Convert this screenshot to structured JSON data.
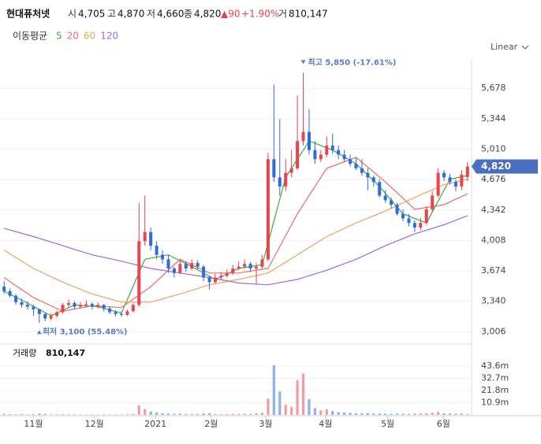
{
  "header": {
    "name": "현대퓨처넷",
    "open_label": "시",
    "open": "4,705",
    "high_label": "고",
    "high": "4,870",
    "low_label": "저",
    "low": "4,660",
    "close_label": "종",
    "close": "4,820",
    "change": "▲90",
    "change_pct": "+1.90%",
    "volume_label": "거",
    "volume": "810,147"
  },
  "scale_label": "Linear",
  "chart_data": {
    "type": "candlestick",
    "legend_title": "이동평균",
    "up_color": "#e8434e",
    "down_color": "#2f6bd9",
    "volume_up_color": "#f29ca0",
    "volume_down_color": "#8db0ec",
    "xlim": [
      -0.7,
      79.7
    ],
    "xticks": [
      {
        "value": 5,
        "label": "11월"
      },
      {
        "value": 15.4,
        "label": "12월"
      },
      {
        "value": 25.8,
        "label": "2021"
      },
      {
        "value": 35.3,
        "label": "2월"
      },
      {
        "value": 44.6,
        "label": "3월"
      },
      {
        "value": 54.8,
        "label": "4월"
      },
      {
        "value": 65.4,
        "label": "5월"
      },
      {
        "value": 74.9,
        "label": "6월"
      }
    ],
    "ylim": [
      2870,
      6000
    ],
    "yticks": [
      {
        "value": 5678,
        "label": "5,678"
      },
      {
        "value": 5344,
        "label": "5,344"
      },
      {
        "value": 5010,
        "label": "5,010"
      },
      {
        "value": 4676,
        "label": "4,676"
      },
      {
        "value": 4342,
        "label": "4,342"
      },
      {
        "value": 4008,
        "label": "4,008"
      },
      {
        "value": 3674,
        "label": "3,674"
      },
      {
        "value": 3340,
        "label": "3,340"
      },
      {
        "value": 3006,
        "label": "3,006"
      }
    ],
    "grid": true,
    "last_price": {
      "value": 4820,
      "label": "4,820",
      "color": "#4a6fc0"
    },
    "high_note": {
      "index": 51,
      "value": 5850,
      "label": "최고 5,850 (-17.61%)"
    },
    "low_note": {
      "index": 6,
      "value": 3100,
      "label": "최저 3,100 (55.48%)"
    },
    "candles": [
      [
        3500,
        3560,
        3420,
        3450
      ],
      [
        3450,
        3480,
        3380,
        3400
      ],
      [
        3400,
        3420,
        3300,
        3330
      ],
      [
        3330,
        3370,
        3270,
        3300
      ],
      [
        3300,
        3340,
        3250,
        3280
      ],
      [
        3280,
        3300,
        3180,
        3250
      ],
      [
        3250,
        3260,
        3100,
        3200
      ],
      [
        3200,
        3220,
        3120,
        3150
      ],
      [
        3150,
        3210,
        3130,
        3180
      ],
      [
        3180,
        3240,
        3160,
        3220
      ],
      [
        3220,
        3320,
        3200,
        3300
      ],
      [
        3300,
        3360,
        3270,
        3320
      ],
      [
        3320,
        3340,
        3250,
        3280
      ],
      [
        3280,
        3330,
        3260,
        3300
      ],
      [
        3300,
        3350,
        3280,
        3310
      ],
      [
        3310,
        3330,
        3250,
        3280
      ],
      [
        3280,
        3330,
        3260,
        3300
      ],
      [
        3300,
        3310,
        3230,
        3260
      ],
      [
        3260,
        3280,
        3200,
        3220
      ],
      [
        3220,
        3240,
        3170,
        3200
      ],
      [
        3200,
        3230,
        3170,
        3190
      ],
      [
        3190,
        3250,
        3180,
        3230
      ],
      [
        3230,
        3320,
        3220,
        3300
      ],
      [
        3300,
        4420,
        3280,
        4000
      ],
      [
        4000,
        4500,
        3950,
        4100
      ],
      [
        4100,
        4150,
        3900,
        3950
      ],
      [
        3950,
        4000,
        3800,
        3850
      ],
      [
        3850,
        3900,
        3750,
        3800
      ],
      [
        3800,
        3850,
        3650,
        3700
      ],
      [
        3700,
        3720,
        3600,
        3650
      ],
      [
        3650,
        3800,
        3640,
        3750
      ],
      [
        3750,
        3780,
        3660,
        3700
      ],
      [
        3700,
        3800,
        3680,
        3760
      ],
      [
        3760,
        3790,
        3690,
        3720
      ],
      [
        3720,
        3740,
        3560,
        3600
      ],
      [
        3600,
        3620,
        3470,
        3550
      ],
      [
        3550,
        3640,
        3530,
        3600
      ],
      [
        3600,
        3660,
        3580,
        3620
      ],
      [
        3620,
        3690,
        3600,
        3650
      ],
      [
        3650,
        3740,
        3630,
        3700
      ],
      [
        3700,
        3780,
        3680,
        3720
      ],
      [
        3720,
        3800,
        3700,
        3750
      ],
      [
        3750,
        3770,
        3660,
        3700
      ],
      [
        3700,
        3760,
        3520,
        3720
      ],
      [
        3720,
        3850,
        3700,
        3800
      ],
      [
        3800,
        4970,
        3780,
        4900
      ],
      [
        4900,
        5720,
        4650,
        4700
      ],
      [
        4700,
        5340,
        4500,
        4600
      ],
      [
        4600,
        4900,
        4550,
        4750
      ],
      [
        4750,
        5000,
        4700,
        4800
      ],
      [
        4800,
        5600,
        4780,
        5100
      ],
      [
        5100,
        5850,
        5050,
        5200
      ],
      [
        5200,
        5450,
        4950,
        5000
      ],
      [
        5000,
        5100,
        4850,
        4900
      ],
      [
        4900,
        5000,
        4870,
        4950
      ],
      [
        4950,
        5150,
        4920,
        5050
      ],
      [
        5050,
        5180,
        4960,
        5000
      ],
      [
        5000,
        5050,
        4900,
        4950
      ],
      [
        4950,
        5000,
        4870,
        4900
      ],
      [
        4900,
        4950,
        4820,
        4850
      ],
      [
        4850,
        4920,
        4780,
        4800
      ],
      [
        4800,
        4900,
        4720,
        4750
      ],
      [
        4750,
        4800,
        4560,
        4700
      ],
      [
        4700,
        4720,
        4600,
        4650
      ],
      [
        4650,
        4680,
        4480,
        4500
      ],
      [
        4500,
        4560,
        4420,
        4450
      ],
      [
        4450,
        4480,
        4360,
        4400
      ],
      [
        4400,
        4420,
        4280,
        4300
      ],
      [
        4300,
        4350,
        4220,
        4250
      ],
      [
        4250,
        4300,
        4160,
        4200
      ],
      [
        4200,
        4230,
        4100,
        4150
      ],
      [
        4150,
        4260,
        4120,
        4200
      ],
      [
        4200,
        4380,
        4180,
        4350
      ],
      [
        4350,
        4550,
        4320,
        4500
      ],
      [
        4500,
        4800,
        4480,
        4750
      ],
      [
        4750,
        4780,
        4660,
        4700
      ],
      [
        4700,
        4740,
        4620,
        4650
      ],
      [
        4650,
        4680,
        4550,
        4600
      ],
      [
        4600,
        4780,
        4560,
        4730
      ],
      [
        4705,
        4870,
        4660,
        4820
      ]
    ],
    "series": [
      {
        "name": "5",
        "color": "#3cae3c",
        "x": [
          0,
          4,
          8,
          12,
          16,
          20,
          24,
          28,
          32,
          36,
          40,
          44,
          48,
          52,
          56,
          60,
          64,
          68,
          72,
          76,
          79
        ],
        "values": [
          3450,
          3320,
          3180,
          3300,
          3280,
          3210,
          3800,
          3850,
          3720,
          3580,
          3700,
          3740,
          4700,
          5100,
          5000,
          4850,
          4600,
          4300,
          4200,
          4680,
          4720
        ]
      },
      {
        "name": "20",
        "color": "#f06a6a",
        "x": [
          0,
          5,
          10,
          15,
          20,
          25,
          30,
          35,
          40,
          45,
          50,
          55,
          60,
          65,
          70,
          75,
          79
        ],
        "values": [
          3600,
          3380,
          3230,
          3290,
          3270,
          3500,
          3800,
          3650,
          3650,
          3700,
          4300,
          4800,
          4920,
          4650,
          4350,
          4400,
          4520
        ]
      },
      {
        "name": "60",
        "color": "#f5a05a",
        "x": [
          0,
          5,
          10,
          15,
          20,
          25,
          30,
          35,
          40,
          45,
          50,
          55,
          60,
          65,
          70,
          75,
          79
        ],
        "values": [
          3900,
          3700,
          3550,
          3420,
          3330,
          3330,
          3420,
          3520,
          3580,
          3650,
          3850,
          4050,
          4200,
          4330,
          4480,
          4620,
          4680
        ]
      },
      {
        "name": "120",
        "color": "#9a6be0",
        "x": [
          0,
          5,
          10,
          15,
          20,
          25,
          30,
          35,
          40,
          45,
          50,
          55,
          60,
          65,
          70,
          75,
          79
        ],
        "values": [
          4140,
          4050,
          3950,
          3850,
          3780,
          3700,
          3650,
          3600,
          3540,
          3520,
          3580,
          3680,
          3800,
          3950,
          4080,
          4180,
          4280
        ]
      }
    ],
    "volume_label": "거래량",
    "volume_value": "810,147",
    "volume_ylim": [
      0,
      50
    ],
    "volume_yticks": [
      {
        "value": 43.6,
        "label": "43.6m"
      },
      {
        "value": 32.7,
        "label": "32.7m"
      },
      {
        "value": 21.8,
        "label": "21.8m"
      },
      {
        "value": 10.9,
        "label": "10.9m"
      }
    ],
    "volumes": [
      0.8,
      0.6,
      0.5,
      0.7,
      0.4,
      0.6,
      1.2,
      0.8,
      0.5,
      0.4,
      0.6,
      0.5,
      0.4,
      0.3,
      0.4,
      0.3,
      0.3,
      0.4,
      0.3,
      0.3,
      0.4,
      0.5,
      0.9,
      8.5,
      5.2,
      3,
      2.1,
      1.5,
      1.2,
      1.0,
      1.1,
      0.8,
      0.9,
      0.7,
      1.3,
      1.5,
      0.8,
      0.6,
      0.7,
      0.9,
      0.8,
      1.0,
      0.7,
      1.4,
      2.0,
      14.5,
      44.5,
      21,
      9,
      7,
      31,
      37,
      14,
      6,
      4,
      5,
      3.5,
      2.5,
      2,
      1.8,
      1.5,
      1.4,
      1.6,
      1.2,
      1.3,
      1.0,
      0.9,
      1.1,
      0.9,
      0.8,
      1.0,
      1.2,
      1.5,
      2.0,
      2.6,
      1.4,
      1.1,
      1.0,
      1.3,
      0.81
    ]
  }
}
